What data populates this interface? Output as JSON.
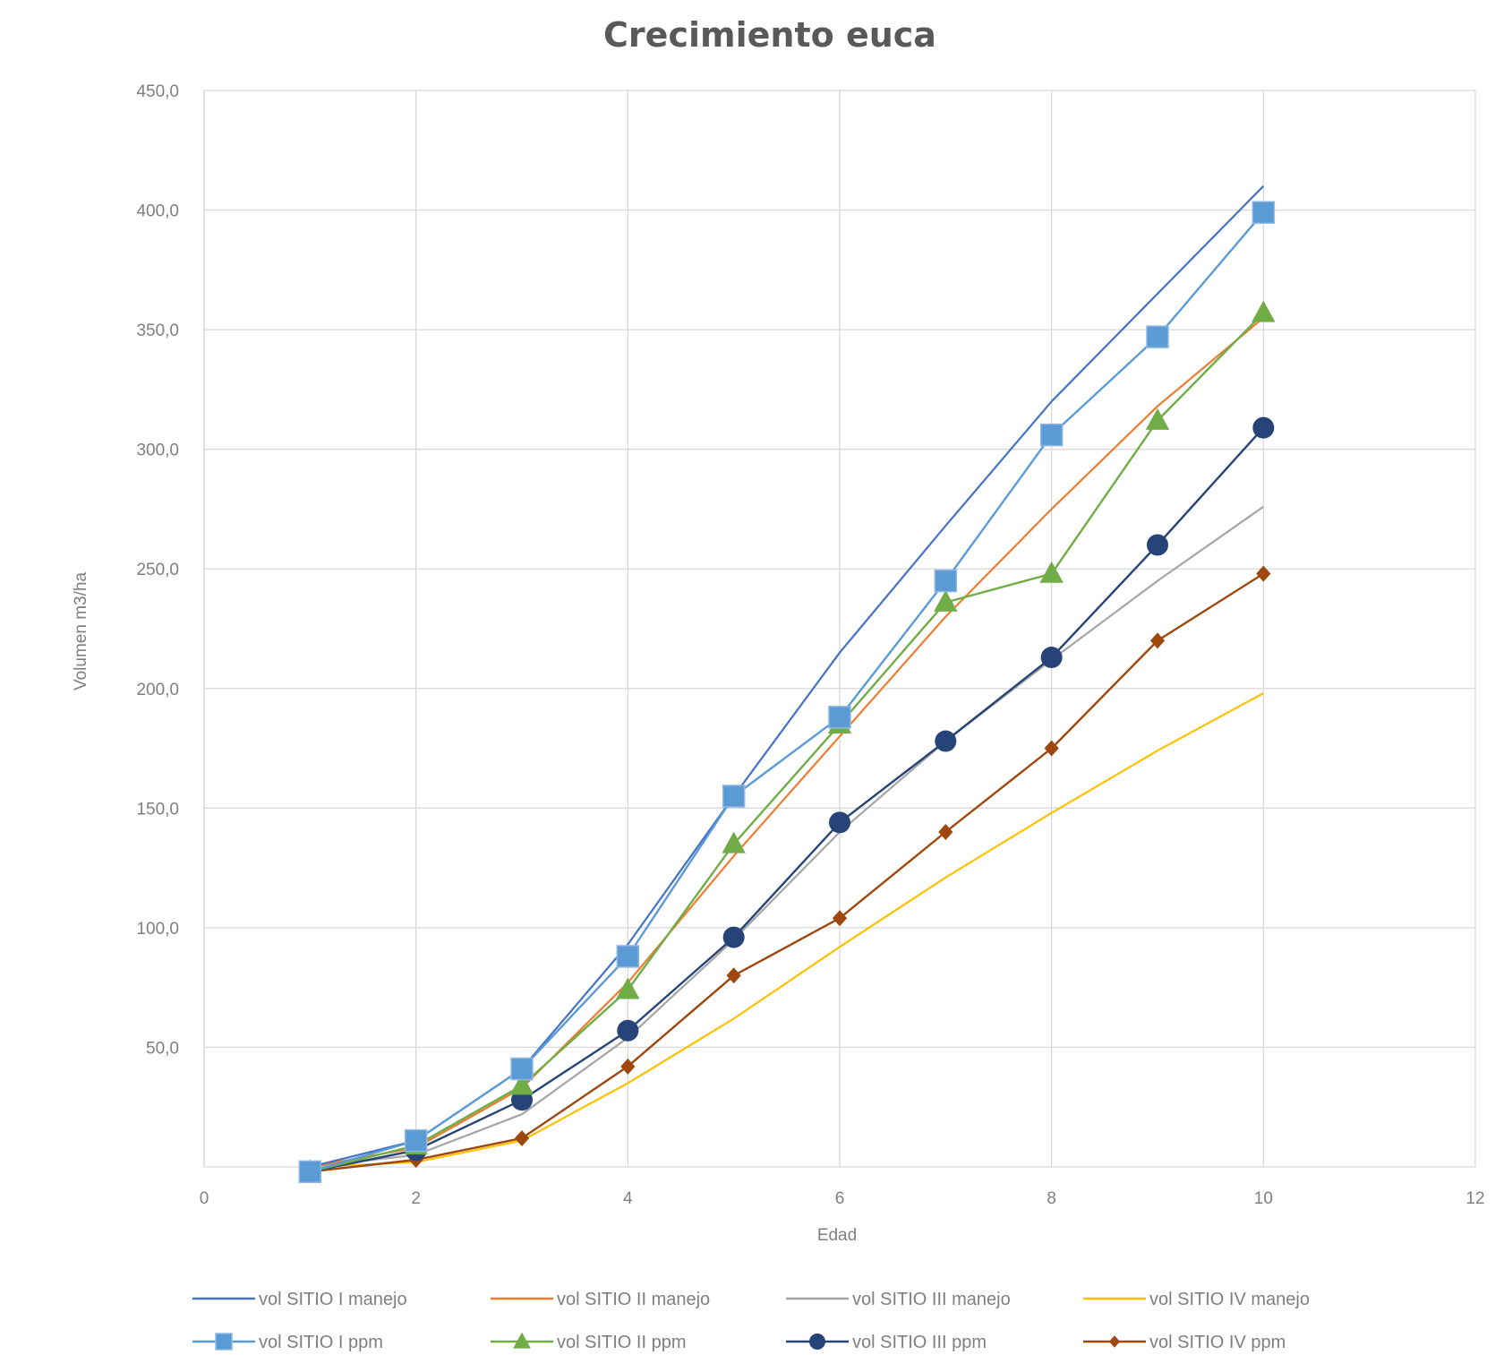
{
  "chart_data": {
    "type": "scatter",
    "title": "Crecimiento euca",
    "xlabel": "Edad",
    "ylabel": "Volumen m3/ha",
    "xlim": [
      0,
      12
    ],
    "ylim": [
      0,
      450
    ],
    "x_ticks": [
      0,
      2,
      4,
      6,
      8,
      10,
      12
    ],
    "x_tick_labels": [
      "0",
      "2",
      "4",
      "6",
      "8",
      "10",
      "12"
    ],
    "y_ticks": [
      50,
      100,
      150,
      200,
      250,
      300,
      350,
      400,
      450
    ],
    "y_tick_labels": [
      "50,0",
      "100,0",
      "150,0",
      "200,0",
      "250,0",
      "300,0",
      "350,0",
      "400,0",
      "450,0"
    ],
    "grid": true,
    "legend_position": "bottom",
    "series": [
      {
        "name": "vol SITIO I manejo",
        "color": "#4472c4",
        "marker": "none",
        "x": [
          1,
          2,
          3,
          4,
          5,
          6,
          7,
          8,
          9,
          10
        ],
        "y": [
          0,
          11,
          41,
          93,
          155,
          215,
          268,
          320,
          365,
          410
        ]
      },
      {
        "name": "vol SITIO II manejo",
        "color": "#ed7d31",
        "marker": "none",
        "x": [
          1,
          2,
          3,
          4,
          5,
          6,
          7,
          8,
          9,
          10
        ],
        "y": [
          0,
          8,
          33,
          77,
          130,
          180,
          230,
          275,
          318,
          355
        ]
      },
      {
        "name": "vol SITIO III manejo",
        "color": "#a5a5a5",
        "marker": "none",
        "x": [
          1,
          2,
          3,
          4,
          5,
          6,
          7,
          8,
          9,
          10
        ],
        "y": [
          0,
          5,
          22,
          54,
          95,
          140,
          178,
          212,
          245,
          276
        ]
      },
      {
        "name": "vol SITIO IV manejo",
        "color": "#ffc000",
        "marker": "none",
        "x": [
          1,
          2,
          3,
          4,
          5,
          6,
          7,
          8,
          9,
          10
        ],
        "y": [
          0,
          2,
          11,
          35,
          62,
          92,
          121,
          148,
          174,
          198
        ]
      },
      {
        "name": "vol SITIO I ppm",
        "color": "#5b9bd5",
        "marker": "square",
        "x": [
          1,
          2,
          3,
          4,
          5,
          6,
          7,
          8,
          9,
          10
        ],
        "y": [
          -2,
          11,
          41,
          88,
          155,
          188,
          245,
          306,
          347,
          399
        ]
      },
      {
        "name": "vol SITIO II ppm",
        "color": "#70ad47",
        "marker": "triangle",
        "x": [
          1,
          2,
          3,
          4,
          5,
          6,
          7,
          8,
          9,
          10
        ],
        "y": [
          -2,
          9,
          34,
          74,
          135,
          185,
          236,
          248,
          312,
          357
        ]
      },
      {
        "name": "vol SITIO III ppm",
        "color": "#264478",
        "marker": "circle",
        "x": [
          1,
          2,
          3,
          4,
          5,
          6,
          7,
          8,
          9,
          10
        ],
        "y": [
          -2,
          7,
          28,
          57,
          96,
          144,
          178,
          213,
          260,
          309
        ]
      },
      {
        "name": "vol SITIO IV ppm",
        "color": "#9e480e",
        "marker": "diamond",
        "x": [
          1,
          2,
          3,
          4,
          5,
          6,
          7,
          8,
          9,
          10
        ],
        "y": [
          -2,
          3,
          12,
          42,
          80,
          104,
          140,
          175,
          220,
          248
        ]
      }
    ]
  }
}
